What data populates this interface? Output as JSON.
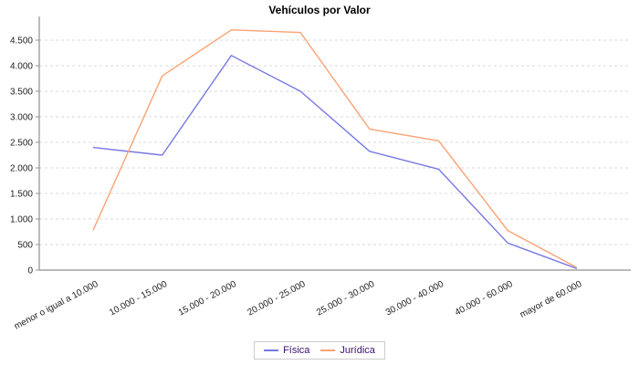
{
  "chart_data": {
    "type": "line",
    "title": "Vehículos por Valor",
    "categories": [
      "menor o igual a 10.000",
      "10.000 - 15.000",
      "15.000 - 20.000",
      "20.000 - 25.000",
      "25.000 - 30.000",
      "30.000 - 40.000",
      "40.000 - 60.000",
      "mayor de 60.000"
    ],
    "series": [
      {
        "name": "Física",
        "color": "#7879E4",
        "values": [
          2400,
          2250,
          4200,
          3500,
          2325,
          1975,
          530,
          30
        ]
      },
      {
        "name": "Jurídica",
        "color": "#FAA272",
        "values": [
          780,
          3800,
          4700,
          4650,
          2760,
          2530,
          775,
          50
        ]
      }
    ],
    "xlabel": "",
    "ylabel": "",
    "ylim": [
      0,
      4950
    ],
    "ytick_step": 500,
    "ytick_labels": [
      "0",
      "500",
      "1.000",
      "1.500",
      "2.000",
      "2.500",
      "3.000",
      "3.500",
      "4.000",
      "4.500"
    ],
    "grid": "horizontal-dashed",
    "legend_position": "bottom-center",
    "colors": {
      "axis": "#909090",
      "gridline": "#D9D9D9",
      "tick_label": "#222222",
      "title_text": "#000000",
      "legend_text": "#3A0F73",
      "legend_border": "#CCCCCC",
      "background": "#FFFFFF"
    }
  }
}
